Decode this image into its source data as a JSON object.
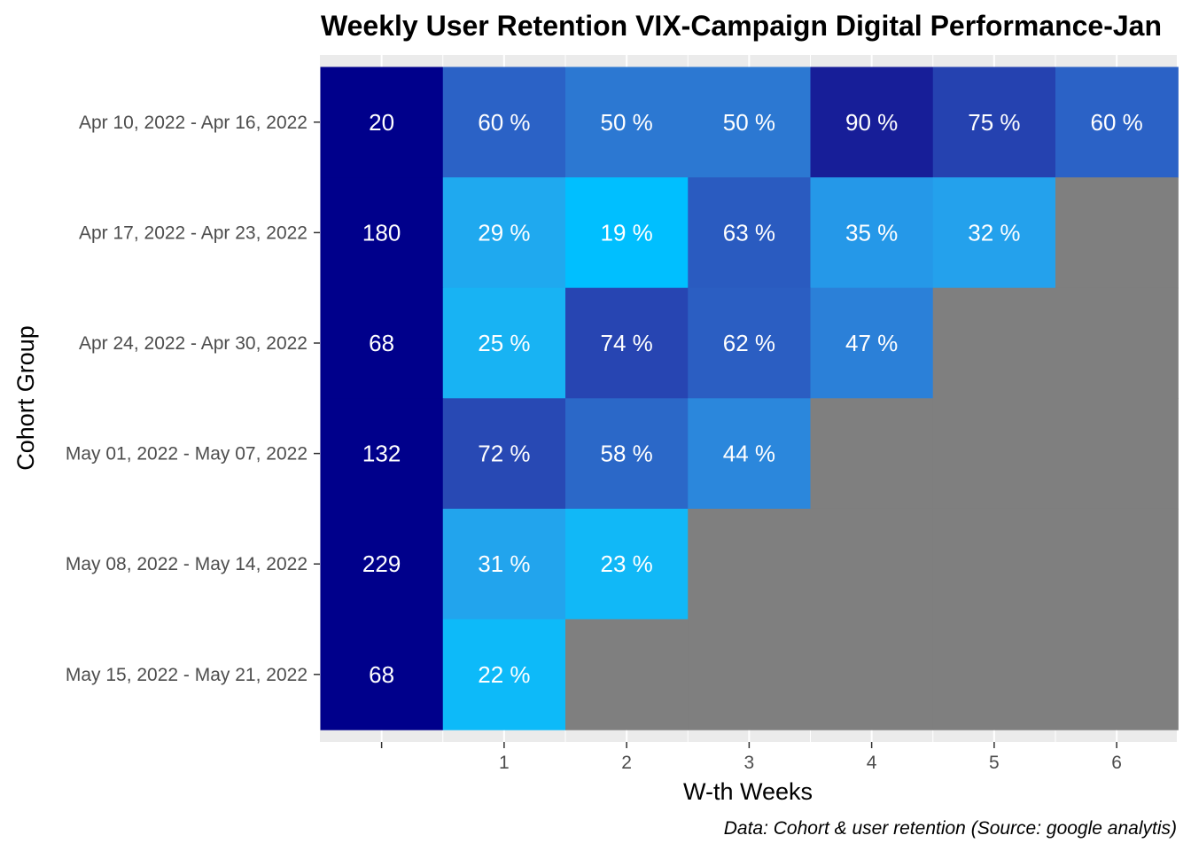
{
  "chart_data": {
    "type": "heatmap",
    "title": "Weekly User Retention VIX-Campaign Digital Performance-Jan",
    "xlabel": "W-th Weeks",
    "ylabel": "Cohort Group",
    "caption": "Data: Cohort & user retention (Source: google analytis)",
    "x_ticks": [
      "",
      "1",
      "2",
      "3",
      "4",
      "5",
      "6"
    ],
    "cohorts": [
      "Apr 10, 2022 - Apr 16, 2022",
      "Apr 17, 2022 - Apr 23, 2022",
      "Apr 24, 2022 - Apr 30, 2022",
      "May 01, 2022 - May 07, 2022",
      "May 08, 2022 - May 14, 2022",
      "May 15, 2022 - May 21, 2022"
    ],
    "cohort_sizes": [
      20,
      180,
      68,
      132,
      229,
      68
    ],
    "retention_pct": [
      [
        60,
        50,
        50,
        90,
        75,
        60
      ],
      [
        29,
        19,
        63,
        35,
        32
      ],
      [
        25,
        74,
        62,
        47
      ],
      [
        72,
        58,
        44
      ],
      [
        31,
        23
      ],
      [
        22
      ]
    ],
    "colors": {
      "cohort_size": "#00008b",
      "empty": "#7f7f7f",
      "panel_background": "#ebebeb",
      "label": "#ffffff",
      "scale": [
        {
          "pct": 19,
          "color": "#00bfff"
        },
        {
          "pct": 22,
          "color": "#0dbaf9"
        },
        {
          "pct": 23,
          "color": "#11b8f7"
        },
        {
          "pct": 25,
          "color": "#18b3f3"
        },
        {
          "pct": 29,
          "color": "#1fa9ef"
        },
        {
          "pct": 31,
          "color": "#22a4ed"
        },
        {
          "pct": 32,
          "color": "#24a1ec"
        },
        {
          "pct": 35,
          "color": "#2598e8"
        },
        {
          "pct": 44,
          "color": "#2b87dc"
        },
        {
          "pct": 47,
          "color": "#2b80d8"
        },
        {
          "pct": 50,
          "color": "#2c78d2"
        },
        {
          "pct": 58,
          "color": "#2b68c8"
        },
        {
          "pct": 60,
          "color": "#2b62c6"
        },
        {
          "pct": 62,
          "color": "#2b5ec2"
        },
        {
          "pct": 63,
          "color": "#2a5bc0"
        },
        {
          "pct": 72,
          "color": "#2849b4"
        },
        {
          "pct": 74,
          "color": "#2745b2"
        },
        {
          "pct": 75,
          "color": "#2542b0"
        },
        {
          "pct": 90,
          "color": "#171e98"
        }
      ]
    }
  }
}
